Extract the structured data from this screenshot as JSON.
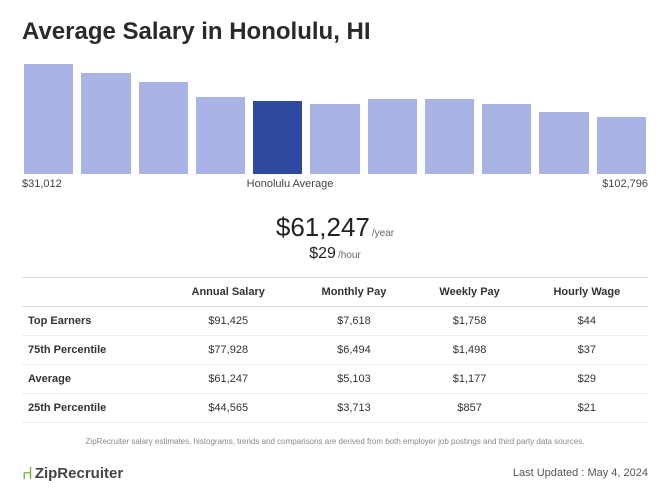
{
  "title": "Average Salary in Honolulu, HI",
  "chart": {
    "type": "bar",
    "bars": [
      {
        "height_pct": 100,
        "color": "#a9b4e5"
      },
      {
        "height_pct": 92,
        "color": "#a9b4e5"
      },
      {
        "height_pct": 84,
        "color": "#a9b4e5"
      },
      {
        "height_pct": 70,
        "color": "#a9b4e5"
      },
      {
        "height_pct": 66,
        "color": "#2e4aa0"
      },
      {
        "height_pct": 64,
        "color": "#a9b4e5"
      },
      {
        "height_pct": 68,
        "color": "#a9b4e5"
      },
      {
        "height_pct": 68,
        "color": "#a9b4e5"
      },
      {
        "height_pct": 64,
        "color": "#a9b4e5"
      },
      {
        "height_pct": 56,
        "color": "#a9b4e5"
      },
      {
        "height_pct": 52,
        "color": "#a9b4e5"
      }
    ],
    "left_label": "$31,012",
    "center_label": "Honolulu Average",
    "right_label": "$102,796",
    "background": "#ffffff"
  },
  "average": {
    "yearly_value": "$61,247",
    "yearly_unit": "/year",
    "hourly_value": "$29",
    "hourly_unit": "/hour"
  },
  "table": {
    "columns": [
      "",
      "Annual Salary",
      "Monthly Pay",
      "Weekly Pay",
      "Hourly Wage"
    ],
    "rows": [
      {
        "label": "Top Earners",
        "annual": "$91,425",
        "monthly": "$7,618",
        "weekly": "$1,758",
        "hourly": "$44"
      },
      {
        "label": "75th Percentile",
        "annual": "$77,928",
        "monthly": "$6,494",
        "weekly": "$1,498",
        "hourly": "$37"
      },
      {
        "label": "Average",
        "annual": "$61,247",
        "monthly": "$5,103",
        "weekly": "$1,177",
        "hourly": "$29"
      },
      {
        "label": "25th Percentile",
        "annual": "$44,565",
        "monthly": "$3,713",
        "weekly": "$857",
        "hourly": "$21"
      }
    ]
  },
  "disclaimer": "ZipRecruiter salary estimates, histograms, trends and comparisons are derived from both employer job postings and third party data sources.",
  "logo_text": "ZipRecruiter",
  "last_updated_label": "Last Updated : ",
  "last_updated_value": "May 4, 2024"
}
